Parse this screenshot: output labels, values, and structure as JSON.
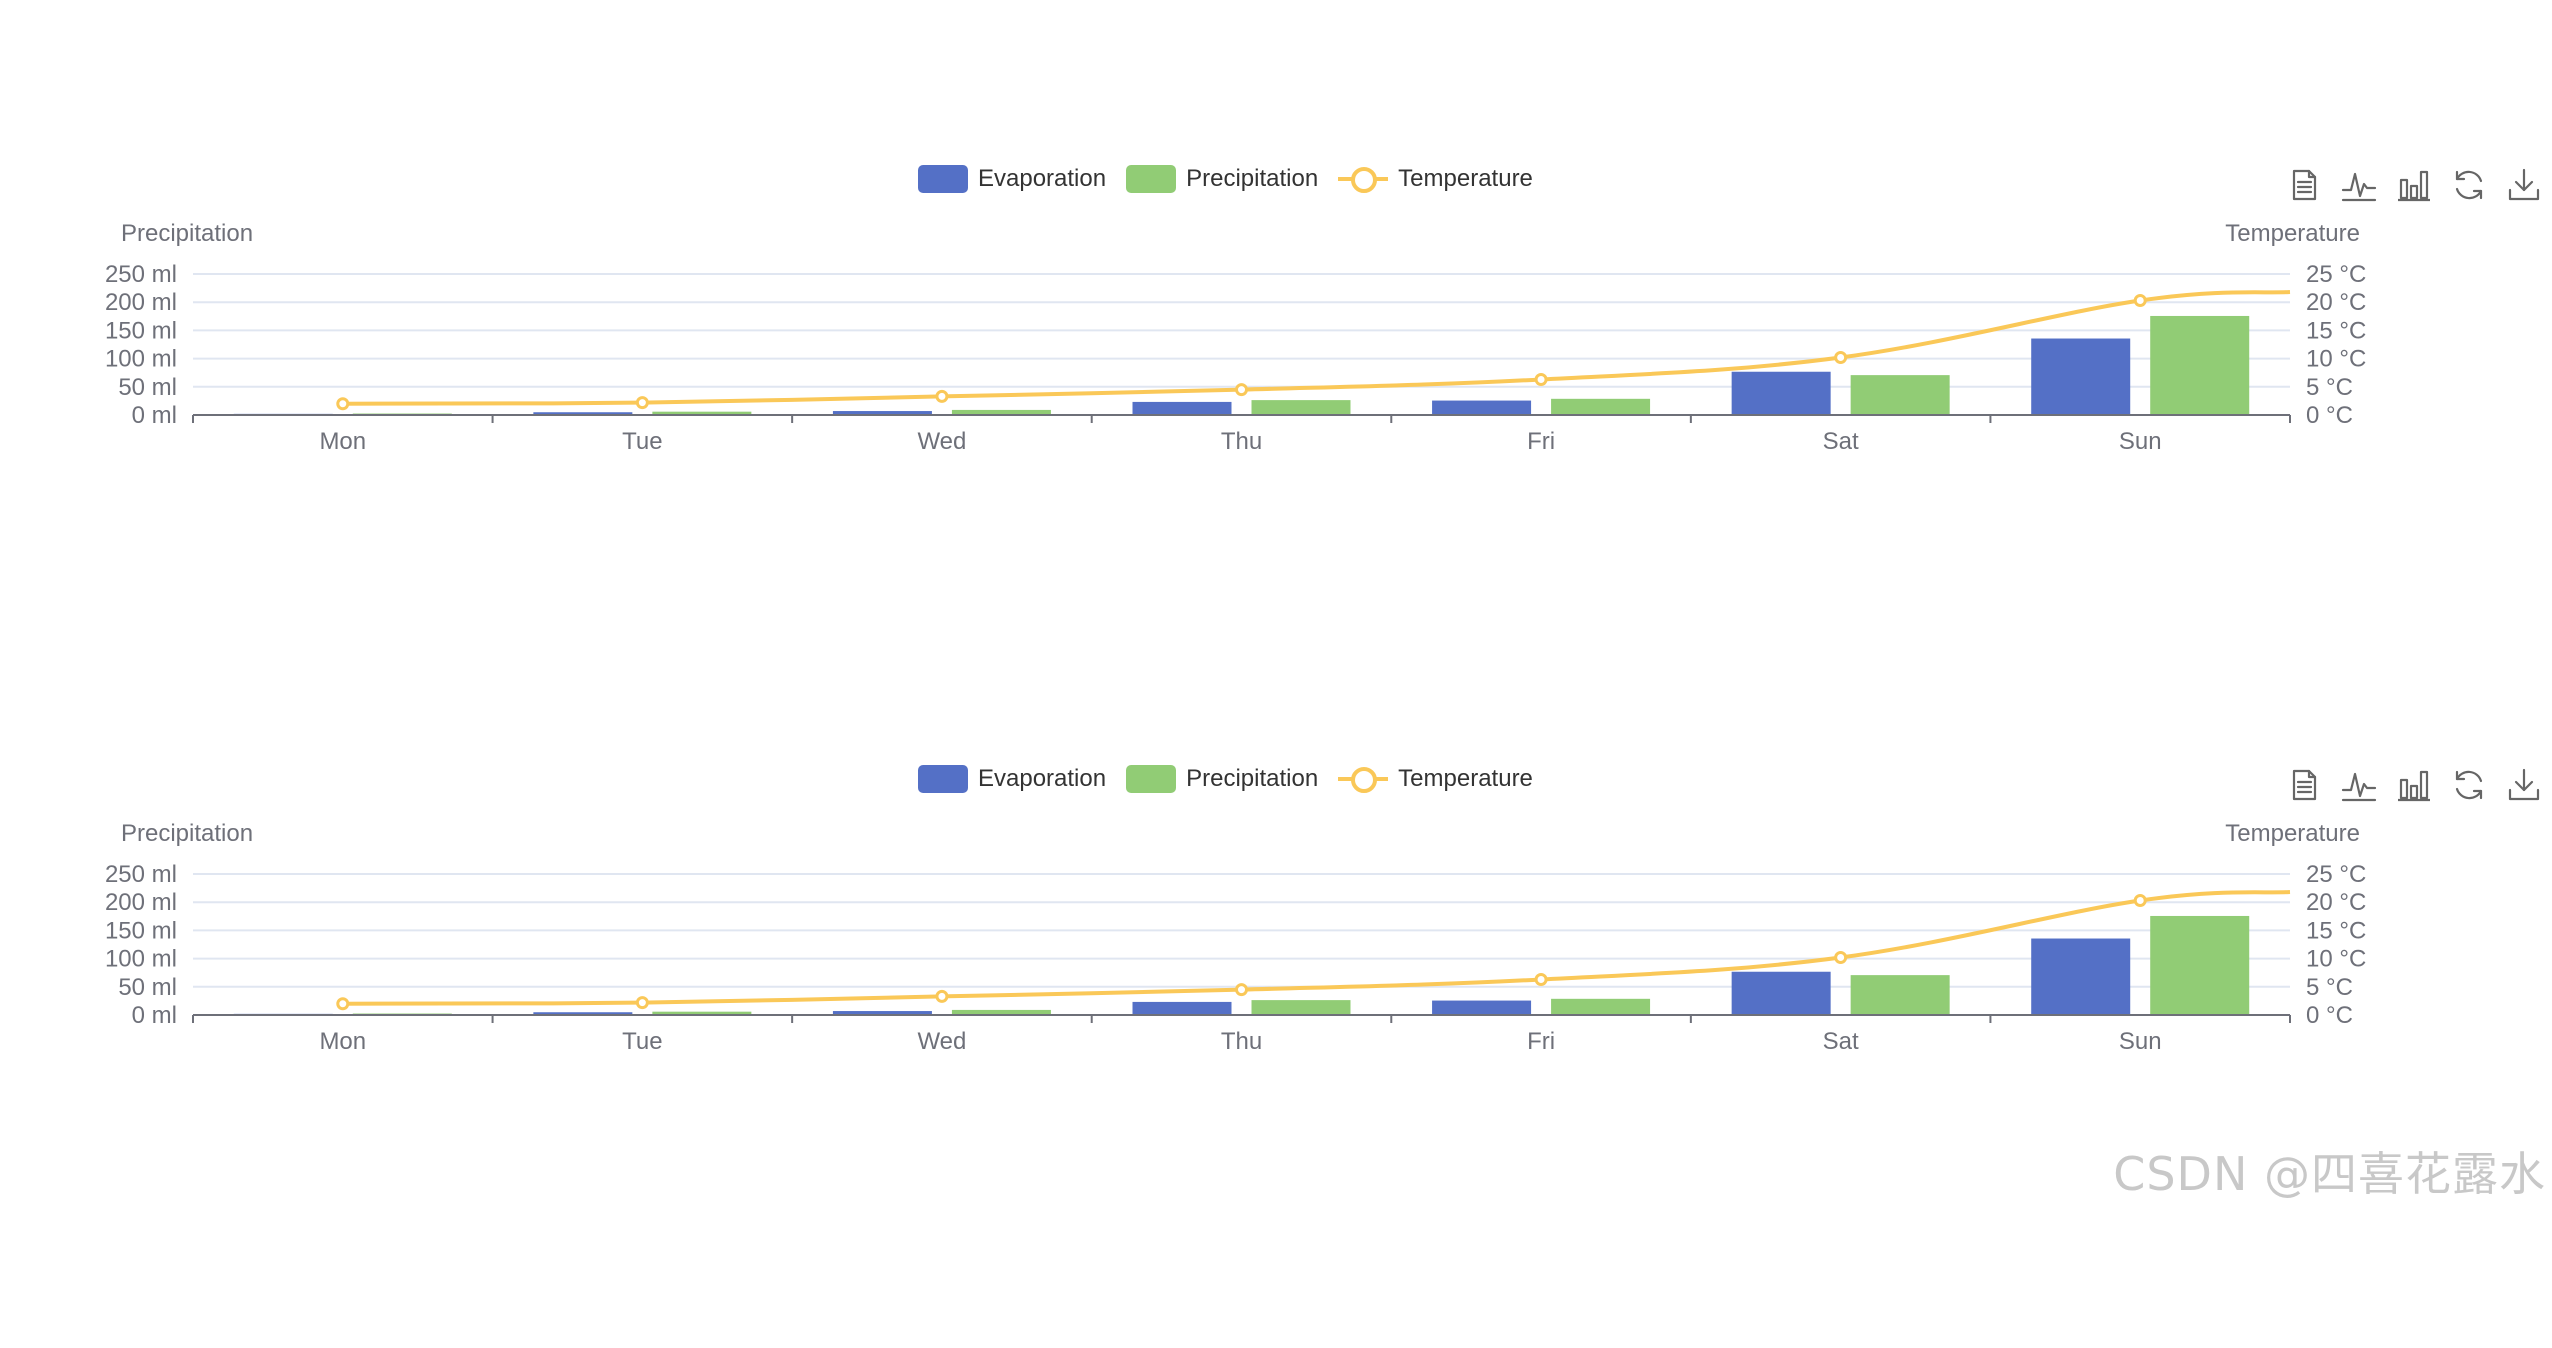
{
  "chart_data": [
    {
      "type": "bar",
      "categories": [
        "Mon",
        "Tue",
        "Wed",
        "Thu",
        "Fri",
        "Sat",
        "Sun"
      ],
      "series": [
        {
          "name": "Evaporation",
          "type": "bar",
          "axis": "left",
          "color": "#5470c6",
          "values": [
            2.0,
            4.9,
            7.0,
            23.2,
            25.6,
            76.7,
            135.6
          ]
        },
        {
          "name": "Precipitation",
          "type": "bar",
          "axis": "left",
          "color": "#91cc75",
          "values": [
            2.6,
            5.9,
            9.0,
            26.4,
            28.7,
            70.7,
            175.6
          ]
        },
        {
          "name": "Temperature",
          "type": "line",
          "axis": "right",
          "color": "#fac858",
          "values": [
            2.0,
            2.2,
            3.3,
            4.5,
            6.3,
            10.2,
            20.3
          ],
          "end_value": 21.8
        }
      ],
      "y_left": {
        "label": "Precipitation",
        "ticks": [
          "0 ml",
          "50 ml",
          "100 ml",
          "150 ml",
          "200 ml",
          "250 ml"
        ],
        "ylim": [
          0,
          250
        ]
      },
      "y_right": {
        "label": "Temperature",
        "ticks": [
          "0 °C",
          "5 °C",
          "10 °C",
          "15 °C",
          "20 °C",
          "25 °C"
        ],
        "ylim": [
          0,
          25
        ]
      },
      "grid": true,
      "legend": "top-center"
    },
    {
      "type": "bar",
      "categories": [
        "Mon",
        "Tue",
        "Wed",
        "Thu",
        "Fri",
        "Sat",
        "Sun"
      ],
      "series": [
        {
          "name": "Evaporation",
          "type": "bar",
          "axis": "left",
          "color": "#5470c6",
          "values": [
            2.0,
            4.9,
            7.0,
            23.2,
            25.6,
            76.7,
            135.6
          ]
        },
        {
          "name": "Precipitation",
          "type": "bar",
          "axis": "left",
          "color": "#91cc75",
          "values": [
            2.6,
            5.9,
            9.0,
            26.4,
            28.7,
            70.7,
            175.6
          ]
        },
        {
          "name": "Temperature",
          "type": "line",
          "axis": "right",
          "color": "#fac858",
          "values": [
            2.0,
            2.2,
            3.3,
            4.5,
            6.3,
            10.2,
            20.3
          ],
          "end_value": 21.8
        }
      ],
      "y_left": {
        "label": "Precipitation",
        "ticks": [
          "0 ml",
          "50 ml",
          "100 ml",
          "150 ml",
          "200 ml",
          "250 ml"
        ],
        "ylim": [
          0,
          250
        ]
      },
      "y_right": {
        "label": "Temperature",
        "ticks": [
          "0 °C",
          "5 °C",
          "10 °C",
          "15 °C",
          "20 °C",
          "25 °C"
        ],
        "ylim": [
          0,
          25
        ]
      },
      "grid": true,
      "legend": "top-center"
    }
  ],
  "legend": {
    "items": [
      {
        "label": "Evaporation",
        "color": "#5470c6"
      },
      {
        "label": "Precipitation",
        "color": "#91cc75"
      },
      {
        "label": "Temperature",
        "color": "#fac858"
      }
    ]
  },
  "toolbox": {
    "icons": [
      "data-view-icon",
      "line-chart-icon",
      "bar-chart-icon",
      "restore-icon",
      "save-image-icon"
    ]
  },
  "watermark": "CSDN @四喜花露水"
}
